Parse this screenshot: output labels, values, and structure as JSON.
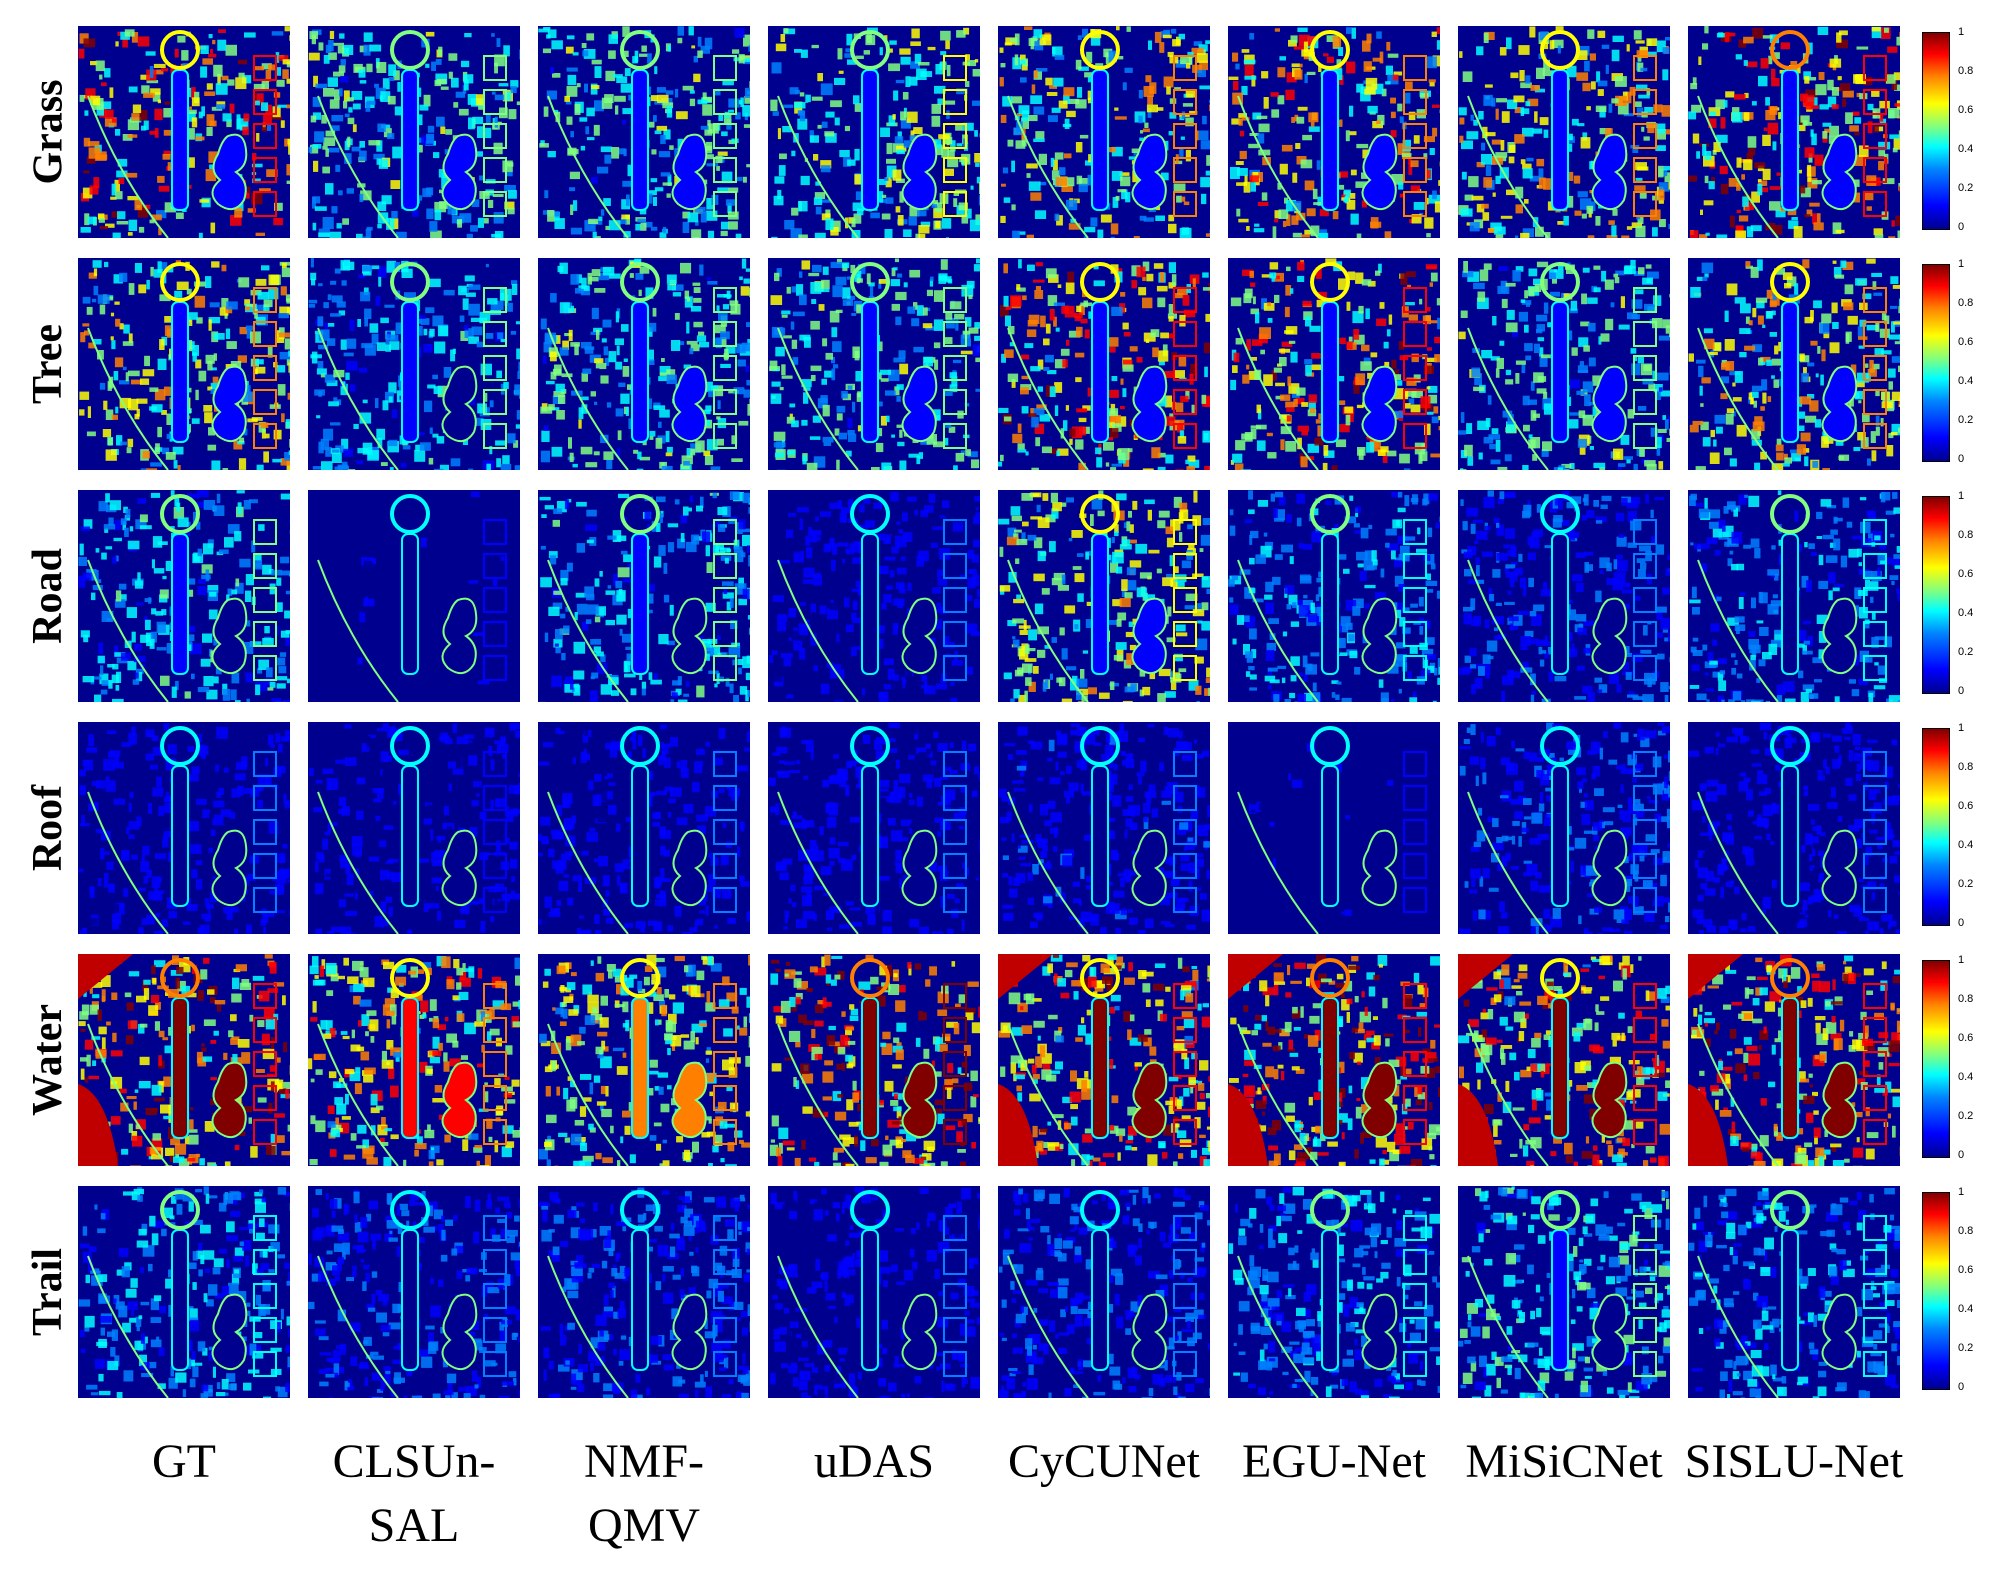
{
  "rows": [
    {
      "label": "Grass"
    },
    {
      "label": "Tree"
    },
    {
      "label": "Road"
    },
    {
      "label": "Roof"
    },
    {
      "label": "Water"
    },
    {
      "label": "Trail"
    }
  ],
  "columns": [
    {
      "lines": [
        "GT"
      ]
    },
    {
      "lines": [
        "CLSUn-",
        "SAL"
      ]
    },
    {
      "lines": [
        "NMF-",
        "QMV"
      ]
    },
    {
      "lines": [
        "uDAS"
      ]
    },
    {
      "lines": [
        "CyCUNet"
      ]
    },
    {
      "lines": [
        "EGU-Net"
      ]
    },
    {
      "lines": [
        "MiSiCNet"
      ]
    },
    {
      "lines": [
        "SISLU-Net"
      ]
    }
  ],
  "colorbar": {
    "ticks": [
      "1",
      "0.8",
      "0.6",
      "0.4",
      "0.2",
      "0"
    ],
    "colors": [
      "#00008f",
      "#0000ff",
      "#0080ff",
      "#00ffff",
      "#80ff80",
      "#ffff00",
      "#ff8000",
      "#ff0000",
      "#800000"
    ]
  },
  "abundance": [
    [
      0.75,
      0.45,
      0.45,
      0.5,
      0.6,
      0.7,
      0.6,
      0.8
    ],
    [
      0.6,
      0.35,
      0.45,
      0.45,
      0.75,
      0.75,
      0.45,
      0.6
    ],
    [
      0.35,
      0.05,
      0.35,
      0.1,
      0.55,
      0.3,
      0.2,
      0.3
    ],
    [
      0.12,
      0.08,
      0.1,
      0.1,
      0.15,
      0.05,
      0.2,
      0.12
    ],
    [
      0.8,
      0.7,
      0.6,
      0.85,
      0.75,
      0.8,
      0.75,
      0.8
    ],
    [
      0.3,
      0.2,
      0.2,
      0.1,
      0.2,
      0.3,
      0.4,
      0.3
    ]
  ]
}
